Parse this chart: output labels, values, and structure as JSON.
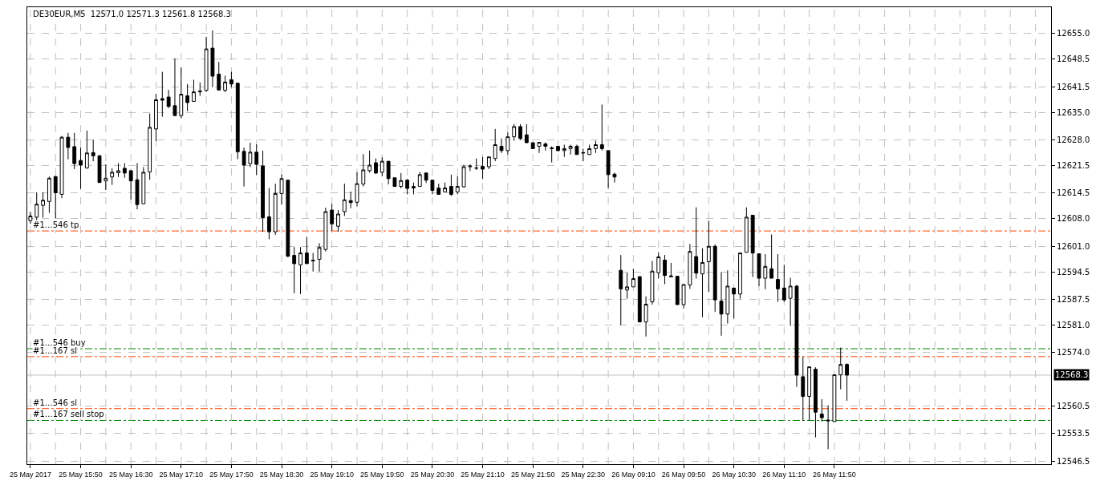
{
  "chart_data": {
    "type": "candlestick",
    "title": "DE30EUR,M5  12571.0 12571.3 12561.8 12568.3",
    "categories": [
      "25 May 2017",
      null,
      null,
      null,
      null,
      null,
      null,
      null,
      "25 May 15:50",
      null,
      null,
      null,
      null,
      null,
      null,
      null,
      "25 May 16:30",
      null,
      null,
      null,
      null,
      null,
      null,
      null,
      "25 May 17:10",
      null,
      null,
      null,
      null,
      null,
      null,
      null,
      "25 May 17:50",
      null,
      null,
      null,
      null,
      null,
      null,
      null,
      "25 May 18:30",
      null,
      null,
      null,
      null,
      null,
      null,
      null,
      "25 May 19:10",
      null,
      null,
      null,
      null,
      null,
      null,
      null,
      "25 May 19:50",
      null,
      null,
      null,
      null,
      null,
      null,
      null,
      "25 May 20:30",
      null,
      null,
      null,
      null,
      null,
      null,
      null,
      "25 May 21:10",
      null,
      null,
      null,
      null,
      null,
      null,
      null,
      "25 May 21:50",
      null,
      null,
      null,
      null,
      null,
      null,
      null,
      "25 May 22:30",
      null,
      null,
      null,
      null,
      null,
      null,
      null,
      "26 May 09:10",
      null,
      null,
      null,
      null,
      null,
      null,
      null,
      "26 May 09:50",
      null,
      null,
      null,
      null,
      null,
      null,
      null,
      "26 May 10:30",
      null,
      null,
      null,
      null,
      null,
      null,
      null,
      "26 May 11:10",
      null,
      null,
      null,
      null,
      null,
      null,
      null,
      "26 May 11:50",
      null,
      null,
      null,
      null,
      null,
      null,
      null,
      null,
      null,
      null,
      null,
      null,
      null,
      null,
      null,
      null,
      null,
      null,
      null,
      null,
      null,
      null,
      null,
      null,
      null,
      null,
      null,
      null,
      null,
      null,
      null,
      null,
      null,
      null
    ],
    "ohlc": [
      [
        12607.5,
        12609.7,
        12606.7,
        12608.7
      ],
      [
        12608.4,
        12614.7,
        12607.5,
        12611.7
      ],
      [
        12611.4,
        12614.7,
        12608.3,
        12612.7
      ],
      [
        12612.4,
        12618.7,
        12609.5,
        12618.3
      ],
      [
        12618.7,
        12618.9,
        12608.1,
        12614.6
      ],
      [
        12614.2,
        12629.0,
        12613.2,
        12628.7
      ],
      [
        12628.7,
        12629.8,
        12623.1,
        12626.1
      ],
      [
        12626.3,
        12629.8,
        12620.6,
        12622.0
      ],
      [
        12622.8,
        12626.1,
        12615.6,
        12621.6
      ],
      [
        12620.9,
        12630.4,
        12620.7,
        12624.7
      ],
      [
        12624.8,
        12628.1,
        12622.6,
        12624.0
      ],
      [
        12624.0,
        12624.1,
        12617.2,
        12617.2
      ],
      [
        12617.6,
        12621.8,
        12615.3,
        12618.3
      ],
      [
        12618.6,
        12620.8,
        12616.6,
        12619.8
      ],
      [
        12619.7,
        12622.1,
        12618.6,
        12620.2
      ],
      [
        12620.8,
        12622.1,
        12618.4,
        12619.6
      ],
      [
        12620.2,
        12620.3,
        12612.9,
        12617.6
      ],
      [
        12617.9,
        12622.1,
        12610.4,
        12611.6
      ],
      [
        12611.8,
        12621.1,
        12611.8,
        12619.8
      ],
      [
        12619.9,
        12634.7,
        12617.9,
        12631.2
      ],
      [
        12630.8,
        12639.7,
        12627.7,
        12638.2
      ],
      [
        12638.5,
        12645.3,
        12633.9,
        12638.1
      ],
      [
        12638.9,
        12640.7,
        12636.1,
        12636.5
      ],
      [
        12636.7,
        12648.7,
        12634.1,
        12634.2
      ],
      [
        12634.2,
        12646.4,
        12633.5,
        12639.6
      ],
      [
        12639.2,
        12642.2,
        12635.3,
        12637.5
      ],
      [
        12637.8,
        12643.3,
        12637.7,
        12640.2
      ],
      [
        12640.2,
        12642.6,
        12639.2,
        12640.4
      ],
      [
        12640.6,
        12654.2,
        12640.2,
        12651.1
      ],
      [
        12651.3,
        12655.8,
        12641.4,
        12644.2
      ],
      [
        12644.7,
        12647.8,
        12640.5,
        12640.7
      ],
      [
        12640.6,
        12644.3,
        12640.2,
        12642.7
      ],
      [
        12643.3,
        12645.3,
        12641.4,
        12642.2
      ],
      [
        12642.4,
        12642.4,
        12623.1,
        12625.0
      ],
      [
        12625.1,
        12626.1,
        12616.2,
        12621.6
      ],
      [
        12622.0,
        12627.3,
        12621.1,
        12624.9
      ],
      [
        12624.9,
        12626.9,
        12619.1,
        12621.8
      ],
      [
        12621.4,
        12625.3,
        12604.7,
        12608.3
      ],
      [
        12608.5,
        12615.8,
        12602.8,
        12604.7
      ],
      [
        12604.7,
        12616.9,
        12603.9,
        12614.4
      ],
      [
        12614.4,
        12619.2,
        12611.6,
        12618.2
      ],
      [
        12617.8,
        12617.8,
        12598.2,
        12598.5
      ],
      [
        12598.7,
        12600.8,
        12589.1,
        12596.6
      ],
      [
        12596.3,
        12600.8,
        12588.9,
        12599.3
      ],
      [
        12599.3,
        12603.4,
        12596.6,
        12596.6
      ],
      [
        12597.5,
        12599.3,
        12594.6,
        12597.3
      ],
      [
        12597.7,
        12601.8,
        12594.6,
        12600.7
      ],
      [
        12600.2,
        12610.8,
        12599.7,
        12609.8
      ],
      [
        12610.2,
        12611.8,
        12604.9,
        12606.7
      ],
      [
        12606.1,
        12610.2,
        12604.7,
        12609.2
      ],
      [
        12609.8,
        12616.9,
        12608.7,
        12612.8
      ],
      [
        12612.6,
        12614.9,
        12610.7,
        12612.1
      ],
      [
        12612.2,
        12619.8,
        12611.1,
        12616.9
      ],
      [
        12616.8,
        12624.4,
        12616.2,
        12620.4
      ],
      [
        12620.2,
        12625.3,
        12619.7,
        12621.6
      ],
      [
        12622.2,
        12623.3,
        12619.4,
        12619.6
      ],
      [
        12619.8,
        12623.6,
        12618.8,
        12622.6
      ],
      [
        12622.6,
        12622.6,
        12616.7,
        12618.2
      ],
      [
        12618.4,
        12618.4,
        12616.2,
        12616.2
      ],
      [
        12616.2,
        12619.6,
        12615.7,
        12617.7
      ],
      [
        12617.8,
        12618.1,
        12614.2,
        12615.7
      ],
      [
        12615.8,
        12617.2,
        12614.2,
        12616.2
      ],
      [
        12616.2,
        12619.9,
        12616.2,
        12619.2
      ],
      [
        12619.6,
        12619.8,
        12617.1,
        12617.8
      ],
      [
        12617.8,
        12617.8,
        12614.2,
        12615.2
      ],
      [
        12615.8,
        12616.9,
        12614.2,
        12614.2
      ],
      [
        12614.8,
        12617.2,
        12614.8,
        12615.8
      ],
      [
        12616.2,
        12619.2,
        12613.8,
        12614.2
      ],
      [
        12614.8,
        12618.8,
        12614.2,
        12616.2
      ],
      [
        12616.1,
        12621.7,
        12615.9,
        12621.2
      ],
      [
        12621.2,
        12621.8,
        12620.1,
        12621.4
      ],
      [
        12620.8,
        12623.3,
        12620.4,
        12620.9
      ],
      [
        12621.3,
        12623.7,
        12618.1,
        12620.6
      ],
      [
        12621.2,
        12623.7,
        12620.6,
        12623.7
      ],
      [
        12623.3,
        12630.8,
        12622.6,
        12626.8
      ],
      [
        12626.4,
        12628.4,
        12624.7,
        12625.3
      ],
      [
        12625.3,
        12629.9,
        12624.3,
        12628.8
      ],
      [
        12628.8,
        12632.0,
        12627.8,
        12631.4
      ],
      [
        12631.4,
        12632.0,
        12628.0,
        12628.4
      ],
      [
        12629.3,
        12632.0,
        12627.3,
        12627.3
      ],
      [
        12627.3,
        12627.3,
        12625.8,
        12625.8
      ],
      [
        12626.4,
        12627.4,
        12624.7,
        12627.4
      ],
      [
        12627.0,
        12627.4,
        12625.3,
        12626.4
      ],
      [
        12626.0,
        12626.4,
        12622.3,
        12625.8
      ],
      [
        12626.4,
        12626.4,
        12625.1,
        12625.3
      ],
      [
        12625.3,
        12626.8,
        12623.7,
        12625.8
      ],
      [
        12625.8,
        12626.8,
        12624.3,
        12626.4
      ],
      [
        12626.4,
        12626.8,
        12624.3,
        12624.3
      ],
      [
        12624.8,
        12625.8,
        12622.6,
        12624.7
      ],
      [
        12624.3,
        12626.8,
        12624.3,
        12625.8
      ],
      [
        12625.8,
        12627.8,
        12624.7,
        12626.8
      ],
      [
        12626.8,
        12637.0,
        12625.3,
        12625.8
      ],
      [
        12625.3,
        12625.3,
        12615.8,
        12619.2
      ],
      [
        12619.3,
        12619.7,
        12617.2,
        12618.6
      ],
      [
        12594.9,
        12598.8,
        12581.0,
        12590.2
      ],
      [
        12589.9,
        12594.4,
        12587.7,
        12590.7
      ],
      [
        12590.7,
        12595.3,
        12590.7,
        12592.8
      ],
      [
        12593.3,
        12593.3,
        12581.8,
        12581.8
      ],
      [
        12581.8,
        12588.3,
        12578.1,
        12586.3
      ],
      [
        12586.9,
        12597.3,
        12586.2,
        12594.7
      ],
      [
        12594.3,
        12599.5,
        12592.8,
        12598.3
      ],
      [
        12597.5,
        12598.8,
        12591.4,
        12593.6
      ],
      [
        12593.5,
        12596.8,
        12593.3,
        12593.3
      ],
      [
        12593.4,
        12593.4,
        12586.2,
        12586.2
      ],
      [
        12586.2,
        12591.3,
        12585.2,
        12591.3
      ],
      [
        12591.2,
        12601.6,
        12590.2,
        12599.7
      ],
      [
        12598.4,
        12610.9,
        12592.8,
        12594.2
      ],
      [
        12594.0,
        12600.5,
        12583.0,
        12596.9
      ],
      [
        12597.1,
        12607.5,
        12589.4,
        12601.0
      ],
      [
        12601.0,
        12601.5,
        12584.4,
        12587.4
      ],
      [
        12587.1,
        12594.4,
        12578.3,
        12583.8
      ],
      [
        12583.8,
        12594.9,
        12581.4,
        12590.9
      ],
      [
        12590.4,
        12590.4,
        12582.7,
        12588.9
      ],
      [
        12588.9,
        12599.3,
        12587.7,
        12599.3
      ],
      [
        12599.5,
        12610.9,
        12599.5,
        12608.4
      ],
      [
        12608.9,
        12608.9,
        12593.2,
        12599.3
      ],
      [
        12599.1,
        12599.1,
        12590.9,
        12592.9
      ],
      [
        12592.9,
        12599.0,
        12590.1,
        12595.9
      ],
      [
        12595.3,
        12604.0,
        12592.9,
        12592.9
      ],
      [
        12592.6,
        12599.0,
        12586.9,
        12590.2
      ],
      [
        12590.4,
        12596.3,
        12586.9,
        12587.4
      ],
      [
        12587.8,
        12593.0,
        12580.8,
        12590.9
      ],
      [
        12590.9,
        12591.2,
        12565.3,
        12568.3
      ],
      [
        12567.9,
        12573.0,
        12556.7,
        12562.9
      ],
      [
        12562.9,
        12570.4,
        12556.7,
        12570.4
      ],
      [
        12569.8,
        12570.3,
        12552.5,
        12558.9
      ],
      [
        12558.4,
        12562.2,
        12556.5,
        12557.5
      ],
      [
        12556.9,
        12560.6,
        12549.5,
        12556.7
      ],
      [
        12556.5,
        12568.4,
        12556.5,
        12568.4
      ],
      [
        12568.4,
        12575.3,
        12564.7,
        12571.0
      ],
      [
        12571.0,
        12571.3,
        12561.8,
        12568.3
      ],
      null,
      null,
      null,
      null,
      null,
      null,
      null,
      null,
      null,
      null,
      null,
      null,
      null,
      null,
      null,
      null,
      null,
      null,
      null,
      null,
      null,
      null,
      null,
      null,
      null,
      null,
      null,
      null,
      null,
      null,
      null,
      null
    ],
    "ylim": [
      12545.7,
      12661.7
    ],
    "yticks": [
      {
        "value": 12546.5,
        "label": "12546.5"
      },
      {
        "value": 12553.5,
        "label": "12553.5"
      },
      {
        "value": 12560.5,
        "label": "12560.5"
      },
      {
        "value": 12574.0,
        "label": "12574.0"
      },
      {
        "value": 12581.0,
        "label": "12581.0"
      },
      {
        "value": 12587.5,
        "label": "12587.5"
      },
      {
        "value": 12594.5,
        "label": "12594.5"
      },
      {
        "value": 12601.0,
        "label": "12601.0"
      },
      {
        "value": 12608.0,
        "label": "12608.0"
      },
      {
        "value": 12614.5,
        "label": "12614.5"
      },
      {
        "value": 12621.5,
        "label": "12621.5"
      },
      {
        "value": 12628.0,
        "label": "12628.0"
      },
      {
        "value": 12635.0,
        "label": "12635.0"
      },
      {
        "value": 12641.5,
        "label": "12641.5"
      },
      {
        "value": 12648.5,
        "label": "12648.5"
      },
      {
        "value": 12655.0,
        "label": "12655.0"
      }
    ],
    "grid": true,
    "ref_lines": [
      {
        "axis": "y",
        "value": 12604.9,
        "label": "#1…546 tp",
        "color": "#ff4500",
        "line_style": "dashed"
      },
      {
        "axis": "y",
        "value": 12575.0,
        "label": "#1…546 buy",
        "color": "#008000",
        "line_style": "dashed"
      },
      {
        "axis": "y",
        "value": 12573.0,
        "label": "#1…167 sl",
        "color": "#ff4500",
        "line_style": "dashed"
      },
      {
        "axis": "y",
        "value": 12559.8,
        "label": "#1…546 sl",
        "color": "#ff4500",
        "line_style": "dashed"
      },
      {
        "axis": "y",
        "value": 12556.8,
        "label": "#1…167 sell stop",
        "color": "#008000",
        "line_style": "dashed"
      },
      {
        "axis": "y",
        "value": 12568.3,
        "label": "12568.3",
        "color": "#c0c0c0",
        "line_style": "solid"
      }
    ]
  }
}
